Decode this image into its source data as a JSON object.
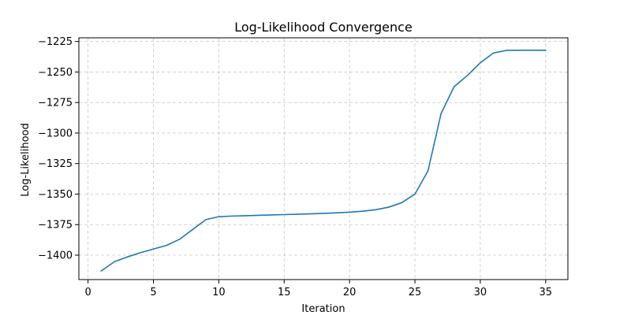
{
  "chart_data": {
    "type": "line",
    "title": "Log-Likelihood Convergence",
    "xlabel": "Iteration",
    "ylabel": "Log-Likelihood",
    "xlim": [
      -0.7,
      36.7
    ],
    "ylim": [
      -1420,
      -1222
    ],
    "xticks": [
      0,
      5,
      10,
      15,
      20,
      25,
      30,
      35
    ],
    "yticks": [
      -1400,
      -1375,
      -1350,
      -1325,
      -1300,
      -1275,
      -1250,
      -1225
    ],
    "xtick_labels": [
      "0",
      "5",
      "10",
      "15",
      "20",
      "25",
      "30",
      "35"
    ],
    "ytick_labels": [
      "−1400",
      "−1375",
      "−1350",
      "−1325",
      "−1300",
      "−1275",
      "−1250",
      "−1225"
    ],
    "grid": true,
    "color": "#1f77b4",
    "series": [
      {
        "x": [
          1,
          2,
          3,
          4,
          5,
          6,
          7,
          8,
          9,
          10,
          11,
          12,
          13,
          14,
          15,
          16,
          17,
          18,
          19,
          20,
          21,
          22,
          23,
          24,
          25,
          26,
          27,
          28,
          29,
          30,
          31,
          32,
          33,
          34,
          35
        ],
        "y": [
          -1413,
          -1405.5,
          -1401.5,
          -1398,
          -1395,
          -1392,
          -1387,
          -1379,
          -1371,
          -1368.5,
          -1368,
          -1367.7,
          -1367.4,
          -1367.1,
          -1366.8,
          -1366.5,
          -1366.2,
          -1365.8,
          -1365.4,
          -1364.8,
          -1364,
          -1362.8,
          -1360.7,
          -1357,
          -1350,
          -1331,
          -1284,
          -1262,
          -1253,
          -1242.5,
          -1234.5,
          -1232.3,
          -1232.2,
          -1232.2,
          -1232.2
        ]
      }
    ]
  }
}
